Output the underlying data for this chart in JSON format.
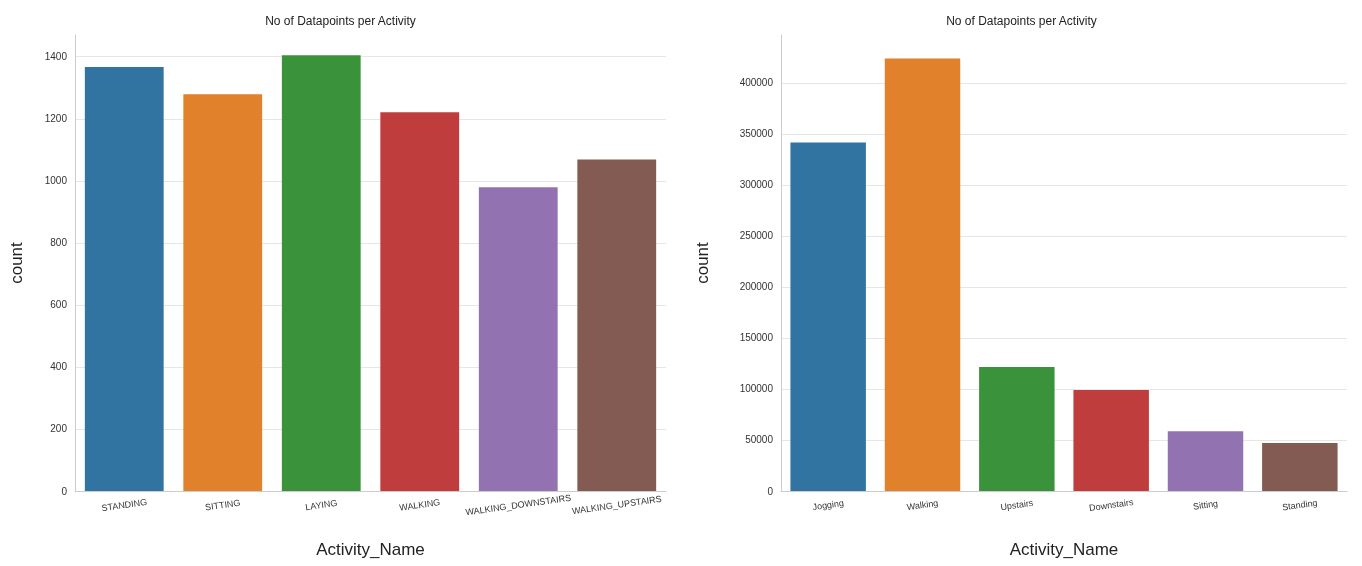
{
  "chart_data": [
    {
      "type": "bar",
      "title": "No of Datapoints per Activity",
      "xlabel": "Activity_Name",
      "ylabel": "count",
      "categories": [
        "STANDING",
        "SITTING",
        "LAYING",
        "WALKING",
        "WALKING_DOWNSTAIRS",
        "WALKING_UPSTAIRS"
      ],
      "values": [
        1367,
        1279,
        1405,
        1221,
        979,
        1069
      ],
      "colors": [
        "#3274a1",
        "#e1812c",
        "#3a923a",
        "#c03d3e",
        "#9372b2",
        "#845b53"
      ],
      "ylim": [
        0,
        1470
      ],
      "yticks": [
        0,
        200,
        400,
        600,
        800,
        1000,
        1200,
        1400
      ],
      "grid": "y"
    },
    {
      "type": "bar",
      "title": "No of Datapoints per Activity",
      "xlabel": "Activity_Name",
      "ylabel": "count",
      "categories": [
        "Jogging",
        "Walking",
        "Upstairs",
        "Downstairs",
        "Sitting",
        "Standing"
      ],
      "values": [
        341500,
        424000,
        121500,
        99000,
        58500,
        47000
      ],
      "colors": [
        "#3274a1",
        "#e1812c",
        "#3a923a",
        "#c03d3e",
        "#9372b2",
        "#845b53"
      ],
      "ylim": [
        0,
        447000
      ],
      "yticks": [
        0,
        50000,
        100000,
        150000,
        200000,
        250000,
        300000,
        350000,
        400000
      ],
      "grid": "y"
    }
  ]
}
